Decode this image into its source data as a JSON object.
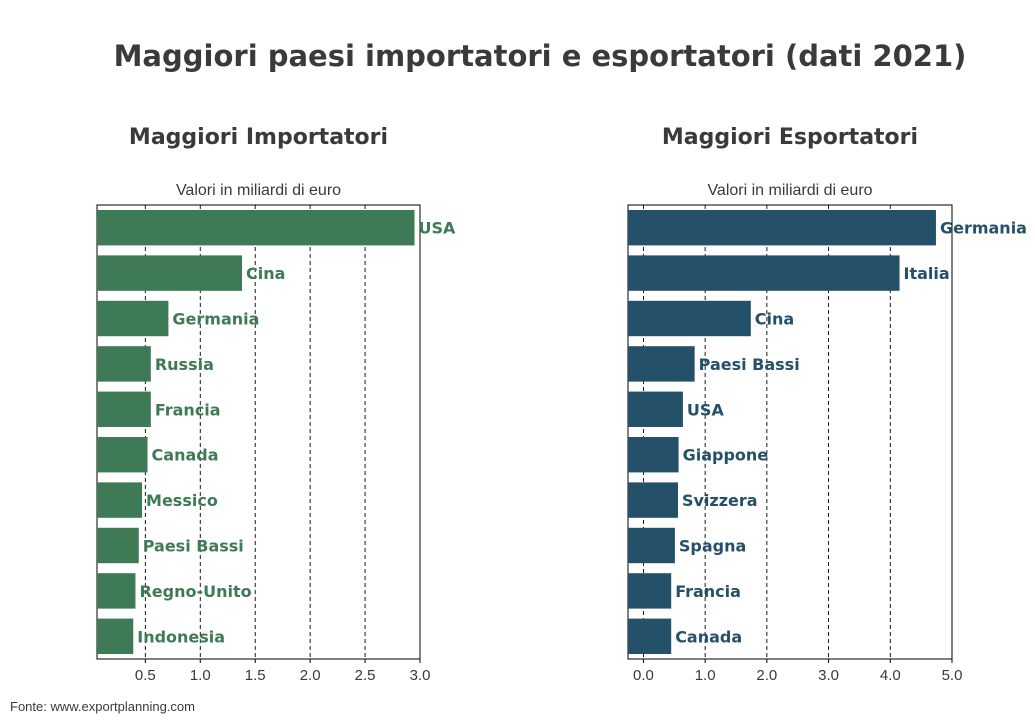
{
  "title": "Maggiori paesi importatori e esportatori (dati 2021)",
  "source": "Fonte: www.exportplanning.com",
  "chart_data": [
    {
      "type": "bar",
      "orientation": "horizontal",
      "title": "Maggiori Importatori",
      "xlabel": "Valori in miliardi di euro",
      "xlim": [
        0.06,
        3.0
      ],
      "xticks": [
        0.5,
        1.0,
        1.5,
        2.0,
        2.5,
        3.0
      ],
      "tick_labels": [
        "0.5",
        "1.0",
        "1.5",
        "2.0",
        "2.5",
        "3.0"
      ],
      "grid": "vertical-dashed",
      "color": "#3e7a56",
      "categories": [
        "USA",
        "Cina",
        "Germania",
        "Russia",
        "Francia",
        "Canada",
        "Messico",
        "Paesi Bassi",
        "Regno-Unito",
        "Indonesia"
      ],
      "values": [
        2.95,
        1.38,
        0.71,
        0.55,
        0.55,
        0.52,
        0.47,
        0.44,
        0.41,
        0.39
      ]
    },
    {
      "type": "bar",
      "orientation": "horizontal",
      "title": "Maggiori Esportatori",
      "xlabel": "Valori in miliardi di euro",
      "xlim": [
        -0.25,
        5.0
      ],
      "xticks": [
        0.0,
        1.0,
        2.0,
        3.0,
        4.0,
        5.0
      ],
      "tick_labels": [
        "0.0",
        "1.0",
        "2.0",
        "3.0",
        "4.0",
        "5.0"
      ],
      "grid": "vertical-dashed",
      "color": "#255069",
      "categories": [
        "Germania",
        "Italia",
        "Cina",
        "Paesi Bassi",
        "USA",
        "Giappone",
        "Svizzera",
        "Spagna",
        "Francia",
        "Canada"
      ],
      "values": [
        4.74,
        4.15,
        1.74,
        0.83,
        0.64,
        0.57,
        0.56,
        0.51,
        0.45,
        0.45
      ]
    }
  ]
}
